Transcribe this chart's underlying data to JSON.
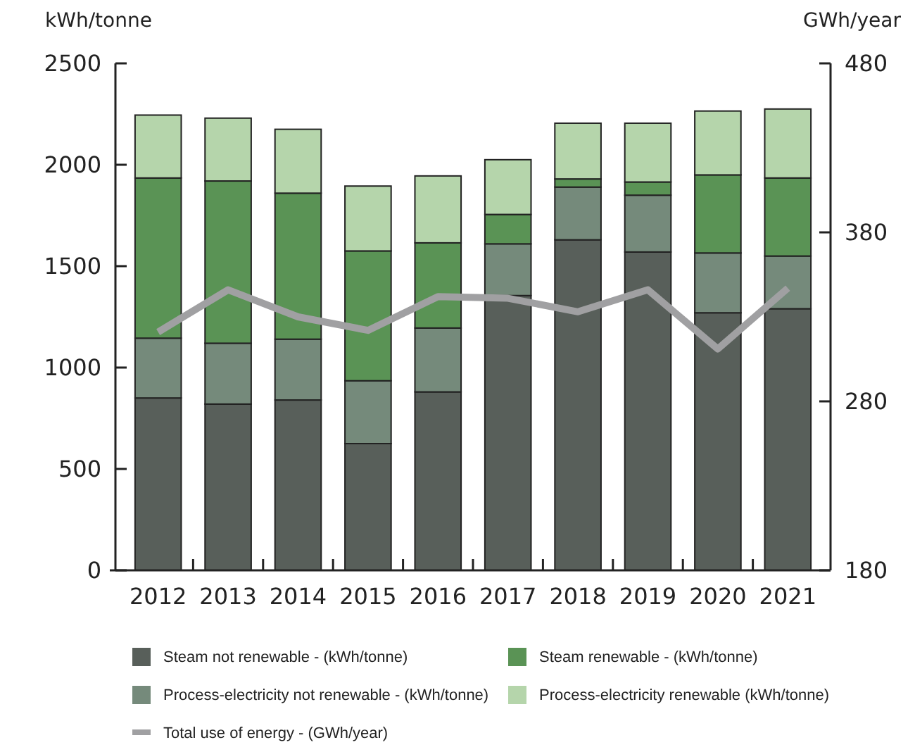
{
  "chart_data": {
    "type": "bar",
    "stacked": true,
    "ylabel": "kWh/tonne",
    "y2label": "GWh/year",
    "categories": [
      "2012",
      "2013",
      "2014",
      "2015",
      "2016",
      "2017",
      "2018",
      "2019",
      "2020",
      "2021"
    ],
    "ylim": [
      0,
      2500
    ],
    "yticks": [
      0,
      500,
      1000,
      1500,
      2000,
      2500
    ],
    "y2lim": [
      180,
      480
    ],
    "y2ticks": [
      180,
      280,
      380,
      480
    ],
    "series": [
      {
        "name": "Steam not renewable - (kWh/tonne)",
        "color": "#585f5a",
        "values": [
          850,
          820,
          840,
          625,
          880,
          1355,
          1630,
          1570,
          1270,
          1290
        ]
      },
      {
        "name": "Process-electricity not renewable - (kWh/tonne)",
        "color": "#758a7b",
        "values": [
          295,
          300,
          300,
          310,
          315,
          255,
          260,
          280,
          295,
          260
        ]
      },
      {
        "name": "Steam renewable - (kWh/tonne)",
        "color": "#5a9355",
        "values": [
          790,
          800,
          720,
          640,
          420,
          145,
          40,
          65,
          385,
          385
        ]
      },
      {
        "name": "Process-electricity renewable (kWh/tonne)",
        "color": "#b5d5ab",
        "values": [
          310,
          310,
          315,
          320,
          330,
          270,
          275,
          290,
          315,
          340
        ]
      },
      {
        "name": "Total use of energy  - (GWh/year)",
        "type": "line",
        "axis": "y2",
        "color": "#a0a0a2",
        "values": [
          321,
          346,
          330,
          322,
          342,
          341,
          333,
          346,
          311,
          347
        ]
      }
    ],
    "legend": "bottom",
    "grid": false
  }
}
